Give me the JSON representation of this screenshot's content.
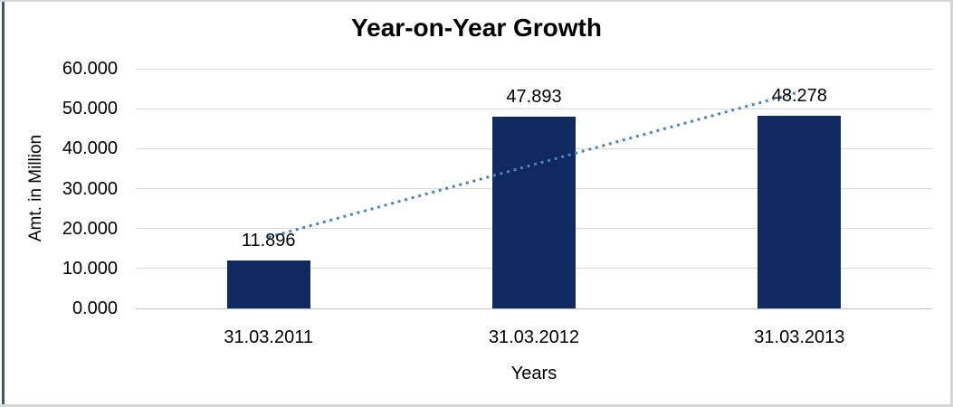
{
  "frame": {
    "background": "#FFFFFF",
    "border_color": "#D5D5D5",
    "left_accent_color": "#44546A"
  },
  "chart_data": {
    "type": "bar",
    "title": "Year-on-Year Growth",
    "xlabel": "Years",
    "ylabel": "Amt. in Million",
    "categories": [
      "31.03.2011",
      "31.03.2012",
      "31.03.2013"
    ],
    "values": [
      11.896,
      47.893,
      48.278
    ],
    "value_labels": [
      "11.896",
      "47.893",
      "48.278"
    ],
    "ylim": [
      0,
      60
    ],
    "ytick_values": [
      0,
      10,
      20,
      30,
      40,
      50,
      60
    ],
    "ytick_labels": [
      "0.000",
      "10.000",
      "20.000",
      "30.000",
      "40.000",
      "50.000",
      "60.000"
    ],
    "grid": true,
    "legend": "none",
    "bar_color": "#102A60",
    "gridline_color": "#D9D9D9",
    "axis_line_color": "#BFBFBF",
    "label_color": "#000000",
    "trendline": {
      "type": "linear",
      "style": "dotted",
      "color": "#4F81BD"
    }
  }
}
